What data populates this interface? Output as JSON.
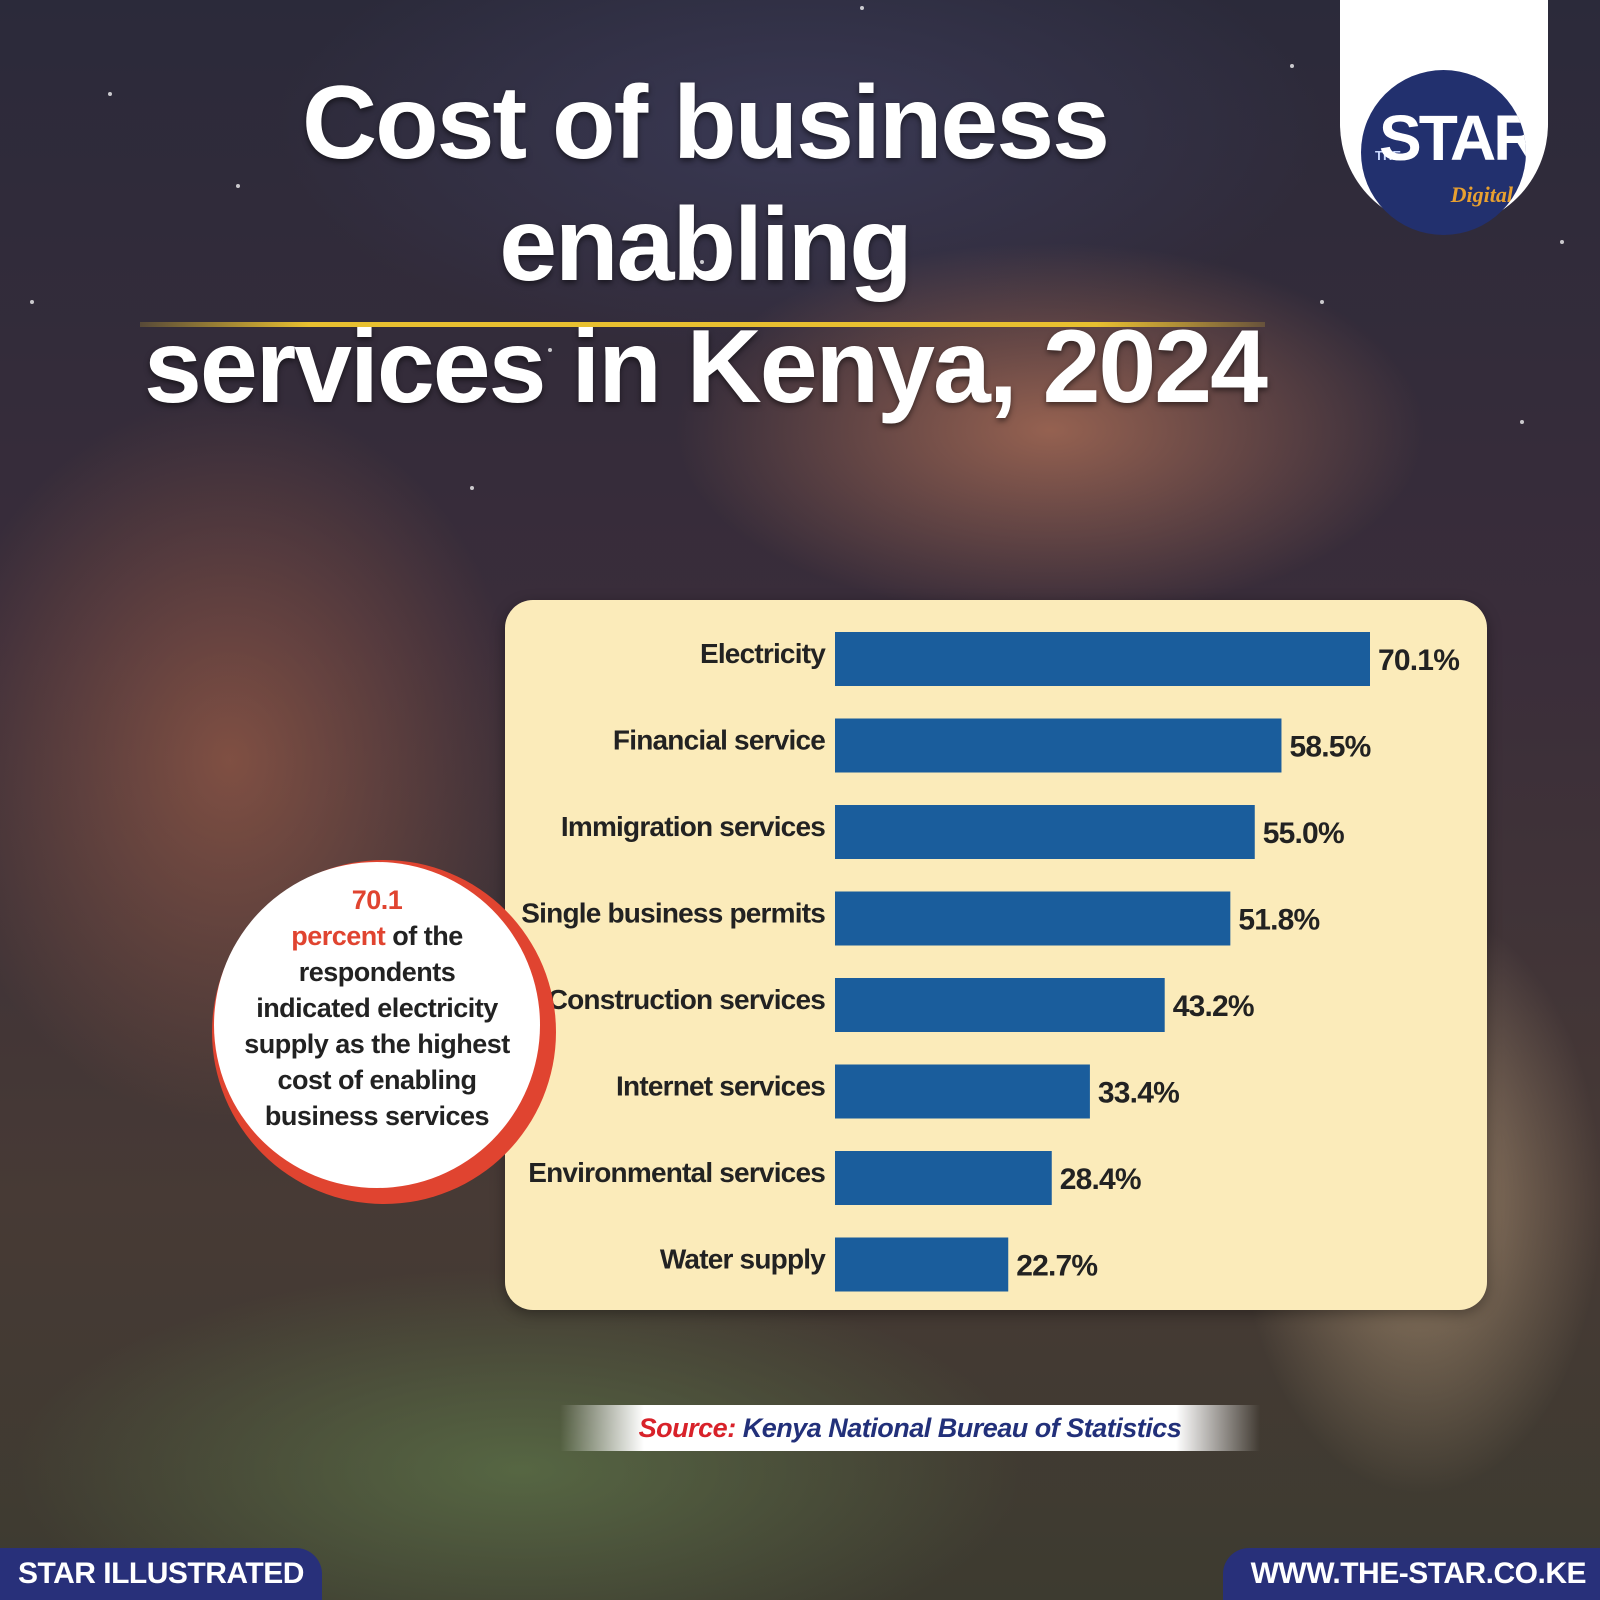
{
  "header": {
    "title_line1": "Cost of business enabling",
    "title_line2": "services in Kenya, 2024"
  },
  "logo": {
    "prefix": "THE",
    "name": "STAR",
    "tagline": "Digital"
  },
  "chart_data": {
    "type": "bar",
    "orientation": "horizontal",
    "categories": [
      "Electricity",
      "Financial service",
      "Immigration services",
      "Single business permits",
      "Construction services",
      "Internet services",
      "Environmental services",
      "Water supply"
    ],
    "values": [
      70.1,
      58.5,
      55.0,
      51.8,
      43.2,
      33.4,
      28.4,
      22.7
    ],
    "value_labels": [
      "70.1%",
      "58.5%",
      "55.0%",
      "51.8%",
      "43.2%",
      "33.4%",
      "28.4%",
      "22.7%"
    ],
    "unit": "%",
    "xlim": [
      0,
      70.1
    ],
    "bar_color": "#1a5d9c",
    "panel_color": "#fbebba",
    "grid": false,
    "legend": "none"
  },
  "callout": {
    "highlight_number": "70.1",
    "highlight_word": "percent",
    "text": " of the respondents indicated electricity supply as the highest cost of enabling business services"
  },
  "source": {
    "label": "Source:",
    "text": "Kenya National Bureau of Statistics"
  },
  "footer": {
    "left": "STAR ILLUSTRATED",
    "right": "WWW.THE-STAR.CO.KE"
  },
  "colors": {
    "accent_red": "#e04430",
    "navy": "#28307a",
    "title_rule": "#e8c030"
  }
}
